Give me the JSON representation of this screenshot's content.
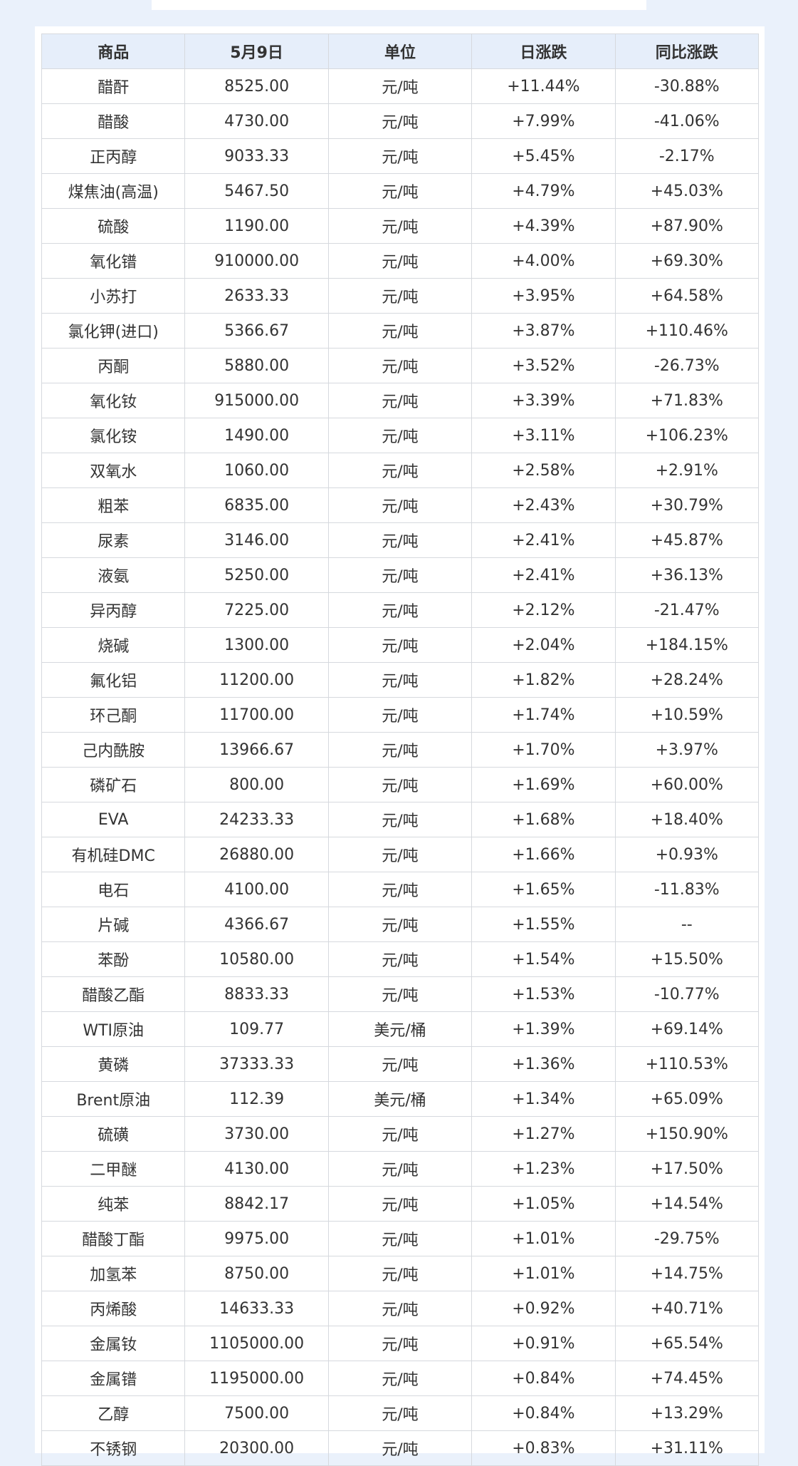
{
  "table": {
    "headers": [
      "商品",
      "5月9日",
      "单位",
      "日涨跌",
      "同比涨跌"
    ],
    "rows": [
      {
        "name": "醋酐",
        "price": "8525.00",
        "unit": "元/吨",
        "daily": "+11.44%",
        "yoy": "-30.88%"
      },
      {
        "name": "醋酸",
        "price": "4730.00",
        "unit": "元/吨",
        "daily": "+7.99%",
        "yoy": "-41.06%"
      },
      {
        "name": "正丙醇",
        "price": "9033.33",
        "unit": "元/吨",
        "daily": "+5.45%",
        "yoy": "-2.17%"
      },
      {
        "name": "煤焦油(高温)",
        "price": "5467.50",
        "unit": "元/吨",
        "daily": "+4.79%",
        "yoy": "+45.03%"
      },
      {
        "name": "硫酸",
        "price": "1190.00",
        "unit": "元/吨",
        "daily": "+4.39%",
        "yoy": "+87.90%"
      },
      {
        "name": "氧化镨",
        "price": "910000.00",
        "unit": "元/吨",
        "daily": "+4.00%",
        "yoy": "+69.30%"
      },
      {
        "name": "小苏打",
        "price": "2633.33",
        "unit": "元/吨",
        "daily": "+3.95%",
        "yoy": "+64.58%"
      },
      {
        "name": "氯化钾(进口)",
        "price": "5366.67",
        "unit": "元/吨",
        "daily": "+3.87%",
        "yoy": "+110.46%"
      },
      {
        "name": "丙酮",
        "price": "5880.00",
        "unit": "元/吨",
        "daily": "+3.52%",
        "yoy": "-26.73%"
      },
      {
        "name": "氧化钕",
        "price": "915000.00",
        "unit": "元/吨",
        "daily": "+3.39%",
        "yoy": "+71.83%"
      },
      {
        "name": "氯化铵",
        "price": "1490.00",
        "unit": "元/吨",
        "daily": "+3.11%",
        "yoy": "+106.23%"
      },
      {
        "name": "双氧水",
        "price": "1060.00",
        "unit": "元/吨",
        "daily": "+2.58%",
        "yoy": "+2.91%"
      },
      {
        "name": "粗苯",
        "price": "6835.00",
        "unit": "元/吨",
        "daily": "+2.43%",
        "yoy": "+30.79%"
      },
      {
        "name": "尿素",
        "price": "3146.00",
        "unit": "元/吨",
        "daily": "+2.41%",
        "yoy": "+45.87%"
      },
      {
        "name": "液氨",
        "price": "5250.00",
        "unit": "元/吨",
        "daily": "+2.41%",
        "yoy": "+36.13%"
      },
      {
        "name": "异丙醇",
        "price": "7225.00",
        "unit": "元/吨",
        "daily": "+2.12%",
        "yoy": "-21.47%"
      },
      {
        "name": "烧碱",
        "price": "1300.00",
        "unit": "元/吨",
        "daily": "+2.04%",
        "yoy": "+184.15%"
      },
      {
        "name": "氟化铝",
        "price": "11200.00",
        "unit": "元/吨",
        "daily": "+1.82%",
        "yoy": "+28.24%"
      },
      {
        "name": "环己酮",
        "price": "11700.00",
        "unit": "元/吨",
        "daily": "+1.74%",
        "yoy": "+10.59%"
      },
      {
        "name": "己内酰胺",
        "price": "13966.67",
        "unit": "元/吨",
        "daily": "+1.70%",
        "yoy": "+3.97%"
      },
      {
        "name": "磷矿石",
        "price": "800.00",
        "unit": "元/吨",
        "daily": "+1.69%",
        "yoy": "+60.00%"
      },
      {
        "name": "EVA",
        "price": "24233.33",
        "unit": "元/吨",
        "daily": "+1.68%",
        "yoy": "+18.40%"
      },
      {
        "name": "有机硅DMC",
        "price": "26880.00",
        "unit": "元/吨",
        "daily": "+1.66%",
        "yoy": "+0.93%"
      },
      {
        "name": "电石",
        "price": "4100.00",
        "unit": "元/吨",
        "daily": "+1.65%",
        "yoy": "-11.83%"
      },
      {
        "name": "片碱",
        "price": "4366.67",
        "unit": "元/吨",
        "daily": "+1.55%",
        "yoy": "--"
      },
      {
        "name": "苯酚",
        "price": "10580.00",
        "unit": "元/吨",
        "daily": "+1.54%",
        "yoy": "+15.50%"
      },
      {
        "name": "醋酸乙酯",
        "price": "8833.33",
        "unit": "元/吨",
        "daily": "+1.53%",
        "yoy": "-10.77%"
      },
      {
        "name": "WTI原油",
        "price": "109.77",
        "unit": "美元/桶",
        "daily": "+1.39%",
        "yoy": "+69.14%"
      },
      {
        "name": "黄磷",
        "price": "37333.33",
        "unit": "元/吨",
        "daily": "+1.36%",
        "yoy": "+110.53%"
      },
      {
        "name": "Brent原油",
        "price": "112.39",
        "unit": "美元/桶",
        "daily": "+1.34%",
        "yoy": "+65.09%"
      },
      {
        "name": "硫磺",
        "price": "3730.00",
        "unit": "元/吨",
        "daily": "+1.27%",
        "yoy": "+150.90%"
      },
      {
        "name": "二甲醚",
        "price": "4130.00",
        "unit": "元/吨",
        "daily": "+1.23%",
        "yoy": "+17.50%"
      },
      {
        "name": "纯苯",
        "price": "8842.17",
        "unit": "元/吨",
        "daily": "+1.05%",
        "yoy": "+14.54%"
      },
      {
        "name": "醋酸丁酯",
        "price": "9975.00",
        "unit": "元/吨",
        "daily": "+1.01%",
        "yoy": "-29.75%"
      },
      {
        "name": "加氢苯",
        "price": "8750.00",
        "unit": "元/吨",
        "daily": "+1.01%",
        "yoy": "+14.75%"
      },
      {
        "name": "丙烯酸",
        "price": "14633.33",
        "unit": "元/吨",
        "daily": "+0.92%",
        "yoy": "+40.71%"
      },
      {
        "name": "金属钕",
        "price": "1105000.00",
        "unit": "元/吨",
        "daily": "+0.91%",
        "yoy": "+65.54%"
      },
      {
        "name": "金属镨",
        "price": "1195000.00",
        "unit": "元/吨",
        "daily": "+0.84%",
        "yoy": "+74.45%"
      },
      {
        "name": "乙醇",
        "price": "7500.00",
        "unit": "元/吨",
        "daily": "+0.84%",
        "yoy": "+13.29%"
      },
      {
        "name": "不锈钢",
        "price": "20300.00",
        "unit": "元/吨",
        "daily": "+0.83%",
        "yoy": "+31.11%"
      }
    ]
  },
  "colors": {
    "up": "#ee1111",
    "down": "#138a13",
    "neutral": "#333333",
    "header_bg": "#e6eefa",
    "page_bg": "#eaf1fb"
  }
}
